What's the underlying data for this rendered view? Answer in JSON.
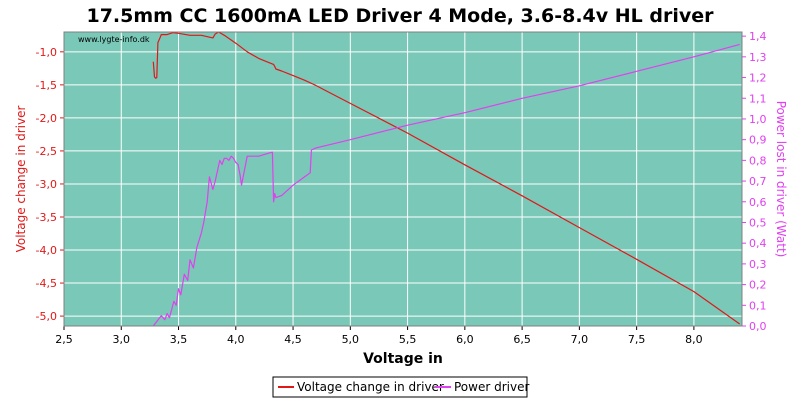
{
  "chart_data": {
    "type": "line",
    "title": "17.5mm CC 1600mA LED Driver 4 Mode, 3.6-8.4v HL driver",
    "watermark": "www.lygte-info.dk",
    "xlabel": "Voltage in",
    "ylabel_left": "Voltage change in driver",
    "ylabel_right": "Power lost in driver (Watt)",
    "xlim": [
      2.5,
      8.42
    ],
    "ylim_left": [
      -5.15,
      -0.7
    ],
    "ylim_right": [
      0.0,
      1.42
    ],
    "x_ticks": [
      "2,5",
      "3,0",
      "3,5",
      "4,0",
      "4,5",
      "5,0",
      "5,5",
      "6,0",
      "6,5",
      "7,0",
      "7,5",
      "8,0"
    ],
    "x_tick_values": [
      2.5,
      3.0,
      3.5,
      4.0,
      4.5,
      5.0,
      5.5,
      6.0,
      6.5,
      7.0,
      7.5,
      8.0
    ],
    "y_left_ticks": [
      "-1,0",
      "-1,5",
      "-2,0",
      "-2,5",
      "-3,0",
      "-3,5",
      "-4,0",
      "-4,5",
      "-5,0"
    ],
    "y_left_tick_values": [
      -1.0,
      -1.5,
      -2.0,
      -2.5,
      -3.0,
      -3.5,
      -4.0,
      -4.5,
      -5.0
    ],
    "y_right_ticks": [
      "0,0",
      "0,1",
      "0,2",
      "0,3",
      "0,4",
      "0,5",
      "0,6",
      "0,7",
      "0,8",
      "0,9",
      "1,0",
      "1,1",
      "1,2",
      "1,3",
      "1,4"
    ],
    "y_right_tick_values": [
      0.0,
      0.1,
      0.2,
      0.3,
      0.4,
      0.5,
      0.6,
      0.7,
      0.8,
      0.9,
      1.0,
      1.1,
      1.2,
      1.3,
      1.4
    ],
    "grid": true,
    "legend_position": "bottom-center",
    "colors": {
      "plot_bg": "#7ac8b8",
      "grid": "#ffffff",
      "voltage": "#e01818",
      "power": "#e040f0"
    },
    "series": [
      {
        "name": "Voltage change in driver",
        "axis": "left",
        "x": [
          3.28,
          3.29,
          3.3,
          3.31,
          3.32,
          3.33,
          3.34,
          3.35,
          3.4,
          3.45,
          3.5,
          3.6,
          3.7,
          3.8,
          3.82,
          3.85,
          3.9,
          4.0,
          4.1,
          4.2,
          4.3,
          4.33,
          4.34,
          4.35,
          4.4,
          4.5,
          4.6,
          4.7,
          4.8,
          5.0,
          5.5,
          6.0,
          6.5,
          7.0,
          7.5,
          8.0,
          8.4
        ],
        "y": [
          -1.15,
          -1.38,
          -1.4,
          -1.39,
          -0.86,
          -0.82,
          -0.78,
          -0.74,
          -0.74,
          -0.71,
          -0.72,
          -0.75,
          -0.75,
          -0.79,
          -0.73,
          -0.7,
          -0.75,
          -0.87,
          -1.0,
          -1.1,
          -1.17,
          -1.19,
          -1.22,
          -1.26,
          -1.29,
          -1.36,
          -1.43,
          -1.51,
          -1.6,
          -1.78,
          -2.23,
          -2.71,
          -3.18,
          -3.66,
          -4.14,
          -4.63,
          -5.12
        ]
      },
      {
        "name": "Power driver",
        "axis": "right",
        "x": [
          3.28,
          3.35,
          3.38,
          3.4,
          3.42,
          3.44,
          3.46,
          3.48,
          3.5,
          3.52,
          3.55,
          3.58,
          3.6,
          3.63,
          3.66,
          3.7,
          3.72,
          3.75,
          3.77,
          3.79,
          3.8,
          3.82,
          3.84,
          3.86,
          3.88,
          3.9,
          3.92,
          3.94,
          3.96,
          3.98,
          4.0,
          4.02,
          4.04,
          4.05,
          4.1,
          4.2,
          4.32,
          4.33,
          4.34,
          4.35,
          4.4,
          4.5,
          4.6,
          4.65,
          4.66,
          4.7,
          5.0,
          5.5,
          6.0,
          6.5,
          7.0,
          7.5,
          8.0,
          8.4
        ],
        "y": [
          0.0,
          0.05,
          0.03,
          0.06,
          0.04,
          0.08,
          0.12,
          0.1,
          0.18,
          0.15,
          0.25,
          0.22,
          0.32,
          0.28,
          0.38,
          0.45,
          0.5,
          0.6,
          0.72,
          0.68,
          0.66,
          0.7,
          0.75,
          0.8,
          0.78,
          0.81,
          0.81,
          0.8,
          0.82,
          0.81,
          0.79,
          0.78,
          0.72,
          0.68,
          0.82,
          0.82,
          0.84,
          0.6,
          0.64,
          0.62,
          0.63,
          0.68,
          0.72,
          0.74,
          0.85,
          0.86,
          0.9,
          0.97,
          1.03,
          1.1,
          1.16,
          1.23,
          1.3,
          1.36
        ]
      }
    ]
  }
}
